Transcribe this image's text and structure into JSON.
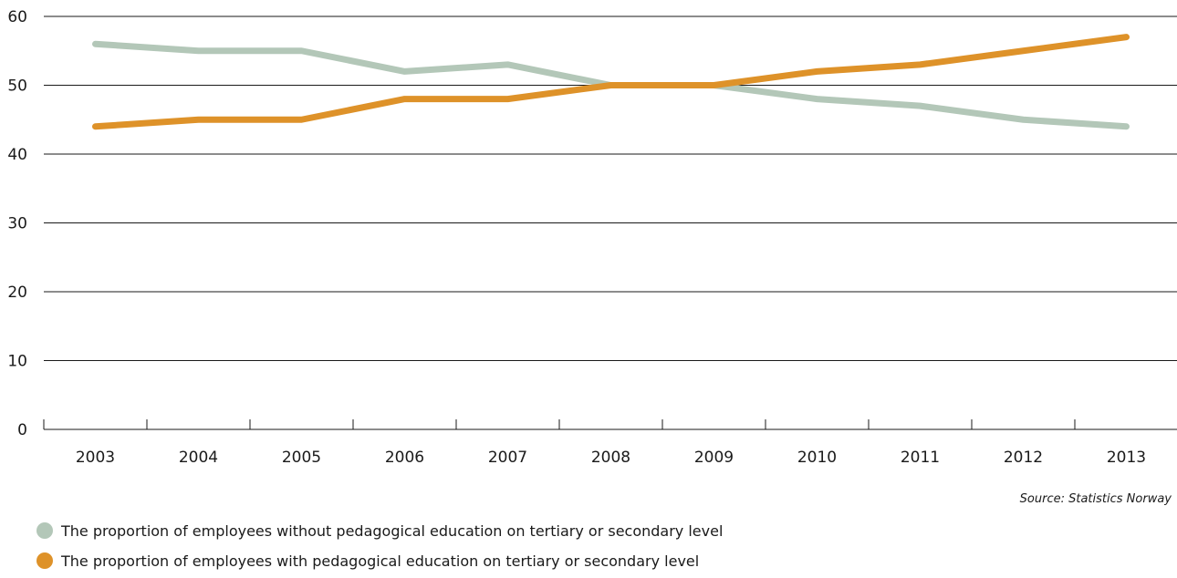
{
  "chart_data": {
    "type": "line",
    "categories": [
      "2003",
      "2004",
      "2005",
      "2006",
      "2007",
      "2008",
      "2009",
      "2010",
      "2011",
      "2012",
      "2013"
    ],
    "ylim": [
      0,
      60
    ],
    "yticks": [
      0,
      10,
      20,
      30,
      40,
      50,
      60
    ],
    "grid": true,
    "series": [
      {
        "name": "The proportion of employees without pedagogical education on tertiary or secondary level",
        "color": "#b3c7b8",
        "values": [
          56,
          55,
          55,
          52,
          53,
          50,
          50,
          48,
          47,
          45,
          44
        ]
      },
      {
        "name": "The proportion of employees with pedagogical education on tertiary or secondary level",
        "color": "#de9229",
        "values": [
          44,
          45,
          45,
          48,
          48,
          50,
          50,
          52,
          53,
          55,
          57
        ]
      }
    ],
    "source": "Source: Statistics Norway"
  }
}
